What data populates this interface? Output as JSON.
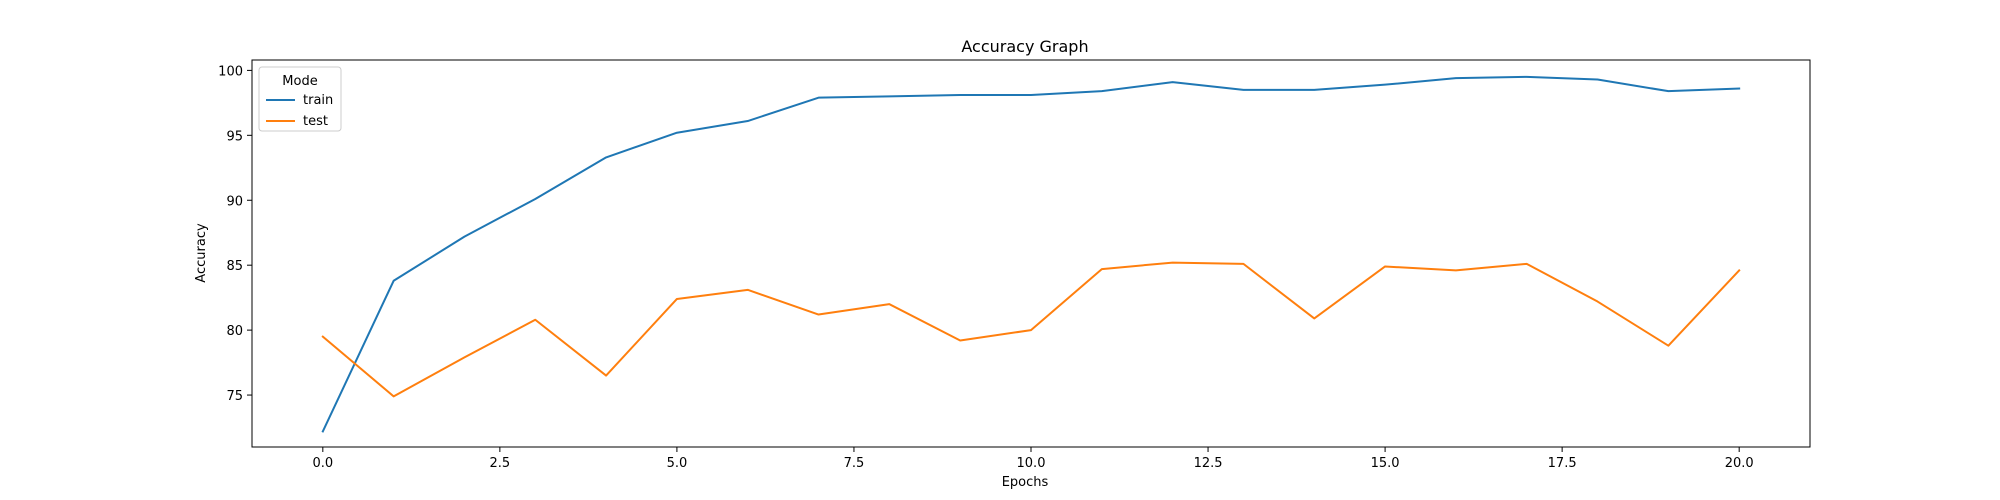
{
  "chart_data": {
    "type": "line",
    "title": "Accuracy Graph",
    "xlabel": "Epochs",
    "ylabel": "Accuracy",
    "xlim": [
      -1,
      21
    ],
    "ylim": [
      71.0,
      100.8
    ],
    "xticks": [
      0.0,
      2.5,
      5.0,
      7.5,
      10.0,
      12.5,
      15.0,
      17.5,
      20.0
    ],
    "xtick_labels": [
      "0.0",
      "2.5",
      "5.0",
      "7.5",
      "10.0",
      "12.5",
      "15.0",
      "17.5",
      "20.0"
    ],
    "yticks": [
      75,
      80,
      85,
      90,
      95,
      100
    ],
    "ytick_labels": [
      "75",
      "80",
      "85",
      "90",
      "95",
      "100"
    ],
    "grid": false,
    "legend": {
      "title": "Mode",
      "placement": "top-left"
    },
    "x": [
      0,
      1,
      2,
      3,
      4,
      5,
      6,
      7,
      8,
      9,
      10,
      11,
      12,
      13,
      14,
      15,
      16,
      17,
      18,
      19,
      20
    ],
    "series": [
      {
        "name": "train",
        "color": "#1f77b4",
        "values": [
          72.2,
          83.8,
          87.2,
          90.1,
          93.3,
          95.2,
          96.1,
          97.9,
          98.0,
          98.1,
          98.1,
          98.4,
          99.1,
          98.5,
          98.5,
          98.9,
          99.4,
          99.5,
          99.3,
          98.4,
          98.6
        ]
      },
      {
        "name": "test",
        "color": "#ff7f0e",
        "values": [
          79.5,
          74.9,
          77.9,
          80.8,
          76.5,
          82.4,
          83.1,
          81.2,
          82.0,
          79.2,
          80.0,
          84.7,
          85.2,
          85.1,
          80.9,
          84.9,
          84.6,
          85.1,
          82.2,
          78.8,
          84.6
        ]
      }
    ]
  }
}
